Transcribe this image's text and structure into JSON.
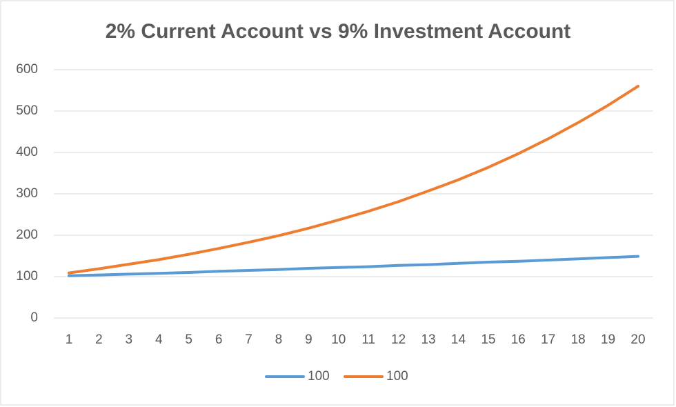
{
  "chart_data": {
    "type": "line",
    "title": "2% Current Account vs 9% Investment Account",
    "categories": [
      "1",
      "2",
      "3",
      "4",
      "5",
      "6",
      "7",
      "8",
      "9",
      "10",
      "11",
      "12",
      "13",
      "14",
      "15",
      "16",
      "17",
      "18",
      "19",
      "20"
    ],
    "series": [
      {
        "name": "100",
        "color": "#5b9bd5",
        "values": [
          102,
          104,
          106,
          108,
          110,
          113,
          115,
          117,
          120,
          122,
          124,
          127,
          129,
          132,
          135,
          137,
          140,
          143,
          146,
          149
        ]
      },
      {
        "name": "100",
        "color": "#ed7d31",
        "values": [
          109,
          119,
          130,
          141,
          154,
          168,
          183,
          199,
          217,
          237,
          258,
          281,
          307,
          334,
          364,
          397,
          433,
          472,
          514,
          560
        ]
      }
    ],
    "ylim": [
      0,
      600
    ],
    "yticks": [
      0,
      100,
      200,
      300,
      400,
      500,
      600
    ],
    "grid": true,
    "legend": "bottom"
  }
}
